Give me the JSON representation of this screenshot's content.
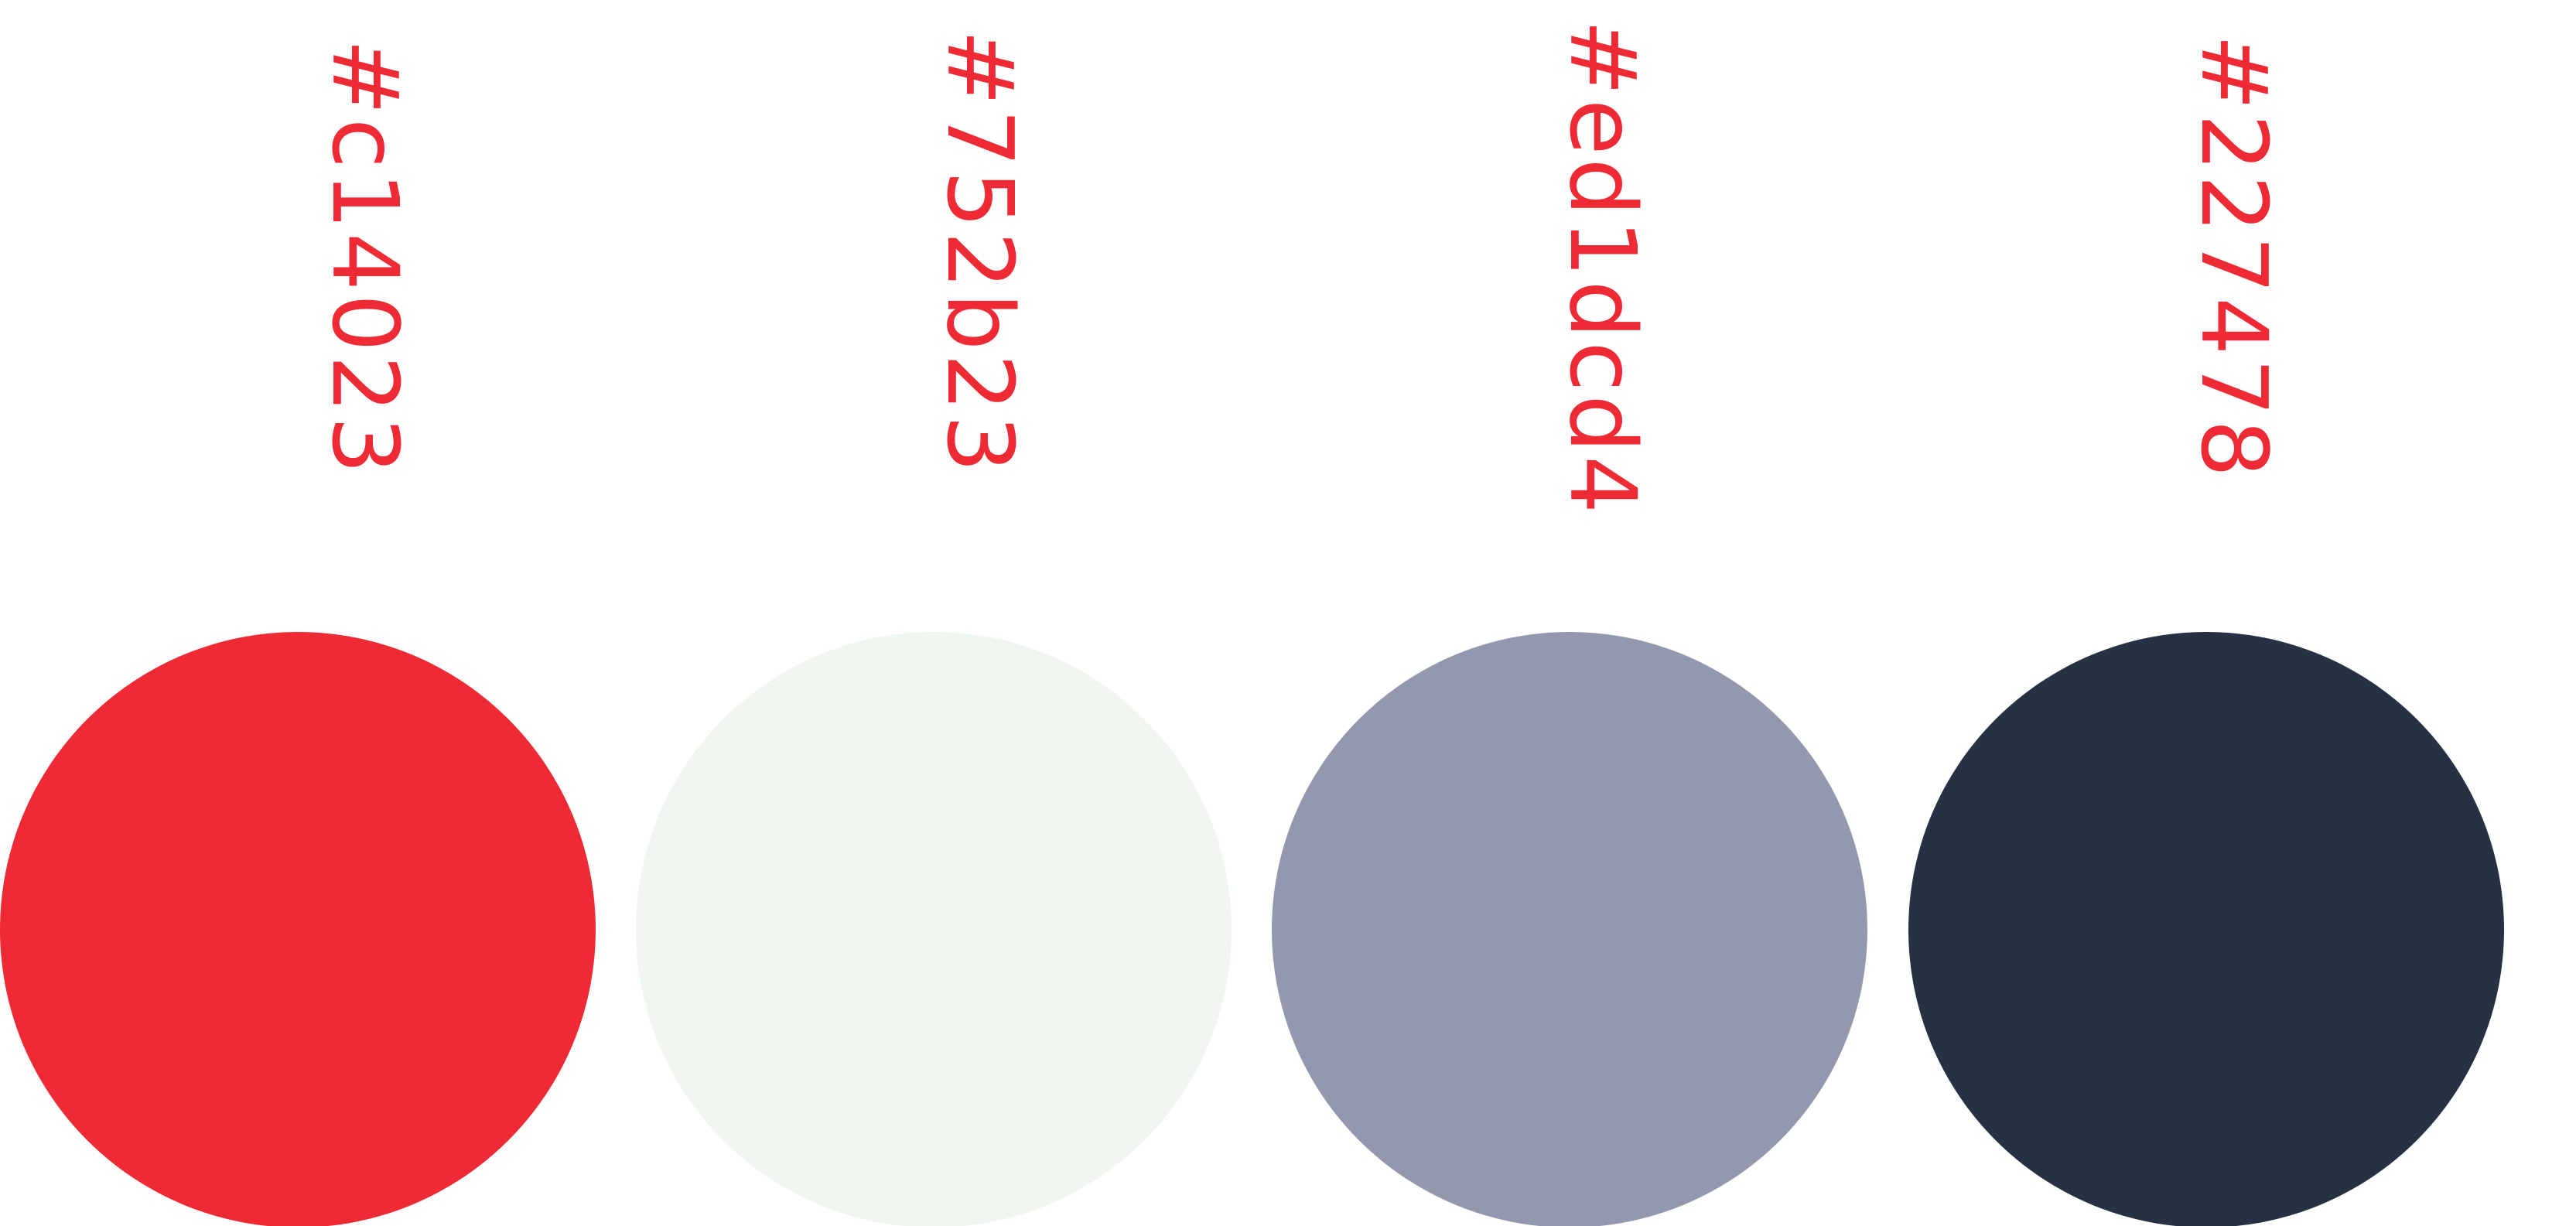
{
  "label_color": "#ee2a35",
  "palette": [
    {
      "code": "#c14023",
      "fill": "#ee2a35"
    },
    {
      "code": "#752b23",
      "fill": "#f0f6f0"
    },
    {
      "code": "#ed1dcd4",
      "fill": "#9498af"
    },
    {
      "code": "#227478",
      "fill": "#263144"
    }
  ]
}
